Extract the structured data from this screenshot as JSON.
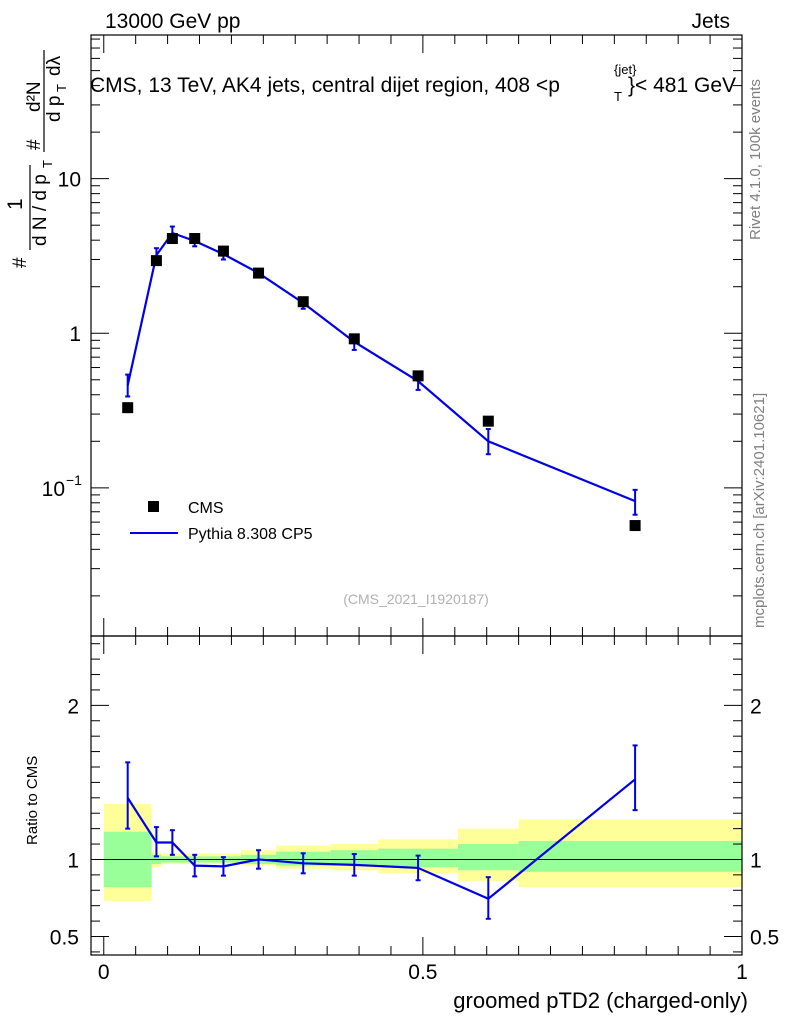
{
  "header": {
    "energy_label": "13000 GeV pp",
    "category_label": "Jets",
    "title_part1": "CMS, 13 TeV, AK4 jets, central dijet region, 408 <p",
    "title_sup": "{jet}",
    "title_sub": "T",
    "title_part2": "}< 481 GeV"
  },
  "side_text": {
    "rivet": "Rivet 4.1.0,  100k events",
    "mcplots": "mcplots.cern.ch [arXiv:2401.10621]"
  },
  "watermark": "(CMS_2021_I1920187)",
  "ylabel_top": {
    "hash1": "#",
    "one": "1",
    "dN_dpT": "d N / d p",
    "T1": "T",
    "hash2": "#",
    "d2N": "d²N",
    "dpT_dlambda": "d p",
    "T2": "T",
    "dlambda": "dλ"
  },
  "ylabel_bottom": "Ratio to CMS",
  "xlabel": "groomed pTD2 (charged-only)",
  "legend": {
    "data_label": "CMS",
    "mc_label": "Pythia 8.308 CP5"
  },
  "colors": {
    "mc_line": "#0000e6",
    "data_marker": "#000000",
    "band_inner": "#99ff99",
    "band_outer": "#ffff99"
  },
  "chart_data": [
    {
      "type": "scatter",
      "panel": "main",
      "yscale": "log",
      "xlim": [
        -0.02,
        1.0
      ],
      "ylim": [
        0.011,
        85
      ],
      "yticks": [
        {
          "v": 0.1,
          "base": "10",
          "exp": "−1"
        },
        {
          "v": 1,
          "label": "1"
        },
        {
          "v": 10,
          "label": "10"
        }
      ],
      "xticks": [
        0,
        0.5,
        1
      ],
      "series": [
        {
          "name": "CMS",
          "x": [
            0.0375,
            0.0825,
            0.1075,
            0.1425,
            0.1875,
            0.2425,
            0.3125,
            0.3925,
            0.4925,
            0.6025,
            0.8325
          ],
          "y": [
            0.33,
            2.95,
            4.1,
            4.1,
            3.4,
            2.45,
            1.6,
            0.92,
            0.53,
            0.27,
            0.057
          ]
        },
        {
          "name": "Pythia 8.308 CP5",
          "x": [
            0.0375,
            0.0825,
            0.1075,
            0.1425,
            0.1875,
            0.2425,
            0.3125,
            0.3925,
            0.4925,
            0.6025,
            0.8325
          ],
          "y": [
            0.46,
            3.2,
            4.45,
            3.95,
            3.25,
            2.45,
            1.57,
            0.88,
            0.49,
            0.2,
            0.082
          ],
          "yerr_low": [
            0.07,
            0.32,
            0.4,
            0.3,
            0.25,
            0.15,
            0.13,
            0.1,
            0.06,
            0.035,
            0.015
          ],
          "yerr_high": [
            0.08,
            0.35,
            0.45,
            0.3,
            0.25,
            0.15,
            0.13,
            0.1,
            0.06,
            0.04,
            0.015
          ]
        }
      ]
    },
    {
      "type": "line",
      "panel": "ratio",
      "xlim": [
        -0.02,
        1.0
      ],
      "ylim": [
        0.38,
        2.45
      ],
      "yticks": [
        0.5,
        1,
        2
      ],
      "xticks": [
        0,
        0.5,
        1
      ],
      "reference_line": 1,
      "bands": {
        "x_edges": [
          0.0,
          0.075,
          0.09,
          0.125,
          0.16,
          0.215,
          0.27,
          0.355,
          0.43,
          0.555,
          0.65,
          1.0
        ],
        "inner_low": [
          0.82,
          0.97,
          0.98,
          0.98,
          0.98,
          0.97,
          0.96,
          0.96,
          0.95,
          0.93,
          0.92
        ],
        "inner_high": [
          1.18,
          1.03,
          1.02,
          1.02,
          1.02,
          1.03,
          1.05,
          1.06,
          1.07,
          1.1,
          1.12
        ],
        "outer_low": [
          0.73,
          0.95,
          0.97,
          0.97,
          0.97,
          0.96,
          0.94,
          0.93,
          0.91,
          0.86,
          0.82
        ],
        "outer_high": [
          1.36,
          1.05,
          1.04,
          1.04,
          1.04,
          1.06,
          1.09,
          1.1,
          1.13,
          1.2,
          1.26
        ]
      },
      "series": [
        {
          "name": "Pythia 8.308 CP5",
          "x": [
            0.0375,
            0.0825,
            0.1075,
            0.1425,
            0.1875,
            0.2425,
            0.3125,
            0.3925,
            0.4925,
            0.6025,
            0.8325
          ],
          "y": [
            1.4,
            1.11,
            1.11,
            0.96,
            0.955,
            1.0,
            0.975,
            0.965,
            0.945,
            0.745,
            1.52
          ],
          "yerr_low": [
            0.2,
            0.09,
            0.08,
            0.07,
            0.06,
            0.06,
            0.065,
            0.07,
            0.08,
            0.13,
            0.2
          ],
          "yerr_high": [
            0.23,
            0.1,
            0.08,
            0.07,
            0.06,
            0.06,
            0.065,
            0.07,
            0.08,
            0.14,
            0.22
          ]
        }
      ]
    }
  ]
}
